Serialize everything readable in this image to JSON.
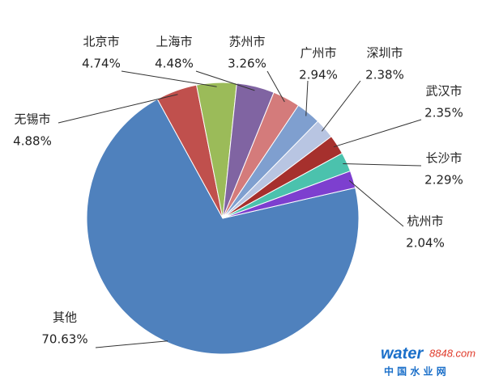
{
  "chart_data": {
    "type": "pie",
    "categories": [
      "其他",
      "无锡市",
      "北京市",
      "上海市",
      "苏州市",
      "广州市",
      "深圳市",
      "武汉市",
      "长沙市",
      "杭州市"
    ],
    "values": [
      70.63,
      4.88,
      4.74,
      4.48,
      3.26,
      2.94,
      2.38,
      2.35,
      2.29,
      2.04
    ],
    "value_labels": [
      "70.63%",
      "4.88%",
      "4.74%",
      "4.48%",
      "3.26%",
      "2.94%",
      "2.38%",
      "2.35%",
      "2.29%",
      "2.04%"
    ],
    "colors": [
      "#4f81bd",
      "#c0504d",
      "#9bbb59",
      "#8064a2",
      "#d47b7b",
      "#7f9fcf",
      "#b8c5e2",
      "#a6302d",
      "#4bc2ad",
      "#7d3fcf"
    ],
    "annotations": [
      "water",
      "8848.com",
      "中 国 水 业 网"
    ]
  }
}
